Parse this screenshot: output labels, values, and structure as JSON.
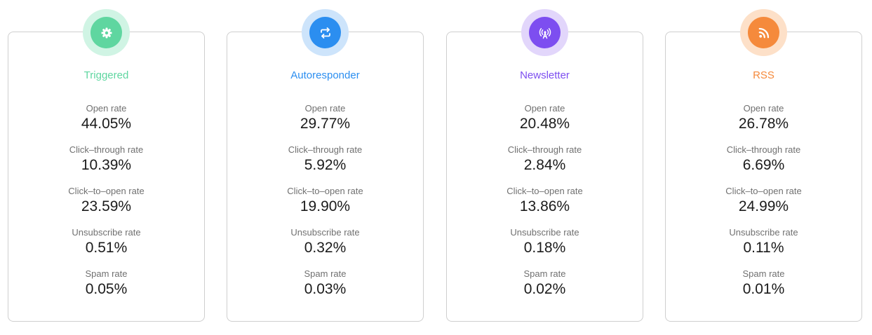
{
  "cards": [
    {
      "title": "Triggered",
      "icon": "gear-icon",
      "accent": "#5fd6a0",
      "ring": "#d0f4e4",
      "metrics": [
        {
          "label": "Open rate",
          "value": "44.05%"
        },
        {
          "label": "Click–through rate",
          "value": "10.39%"
        },
        {
          "label": "Click–to–open rate",
          "value": "23.59%"
        },
        {
          "label": "Unsubscribe rate",
          "value": "0.51%"
        },
        {
          "label": "Spam rate",
          "value": "0.05%"
        }
      ]
    },
    {
      "title": "Autoresponder",
      "icon": "repeat-arrows-icon",
      "accent": "#2b8ef0",
      "ring": "#cde4fb",
      "metrics": [
        {
          "label": "Open rate",
          "value": "29.77%"
        },
        {
          "label": "Click–through rate",
          "value": "5.92%"
        },
        {
          "label": "Click–to–open rate",
          "value": "19.90%"
        },
        {
          "label": "Unsubscribe rate",
          "value": "0.32%"
        },
        {
          "label": "Spam rate",
          "value": "0.03%"
        }
      ]
    },
    {
      "title": "Newsletter",
      "icon": "broadcast-icon",
      "accent": "#7d4ef0",
      "ring": "#e2d6fb",
      "metrics": [
        {
          "label": "Open rate",
          "value": "20.48%"
        },
        {
          "label": "Click–through rate",
          "value": "2.84%"
        },
        {
          "label": "Click–to–open rate",
          "value": "13.86%"
        },
        {
          "label": "Unsubscribe rate",
          "value": "0.18%"
        },
        {
          "label": "Spam rate",
          "value": "0.02%"
        }
      ]
    },
    {
      "title": "RSS",
      "icon": "rss-icon",
      "accent": "#f58a3c",
      "ring": "#fde0c8",
      "metrics": [
        {
          "label": "Open rate",
          "value": "26.78%"
        },
        {
          "label": "Click–through rate",
          "value": "6.69%"
        },
        {
          "label": "Click–to–open rate",
          "value": "24.99%"
        },
        {
          "label": "Unsubscribe rate",
          "value": "0.11%"
        },
        {
          "label": "Spam rate",
          "value": "0.01%"
        }
      ]
    }
  ]
}
